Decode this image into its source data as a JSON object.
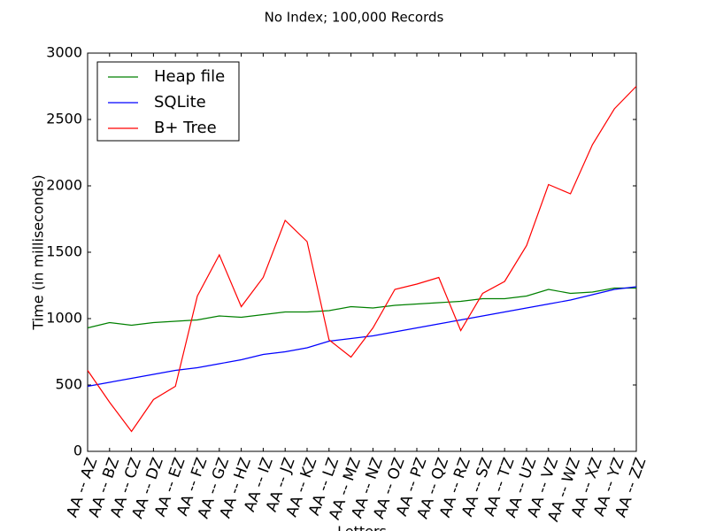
{
  "chart_data": {
    "type": "line",
    "title": "No Index; 100,000 Records",
    "x_label": "Letters",
    "y_label": "Time (in milliseconds)",
    "categories": [
      "AA -- AZ",
      "AA -- BZ",
      "AA -- CZ",
      "AA -- DZ",
      "AA -- EZ",
      "AA -- FZ",
      "AA -- GZ",
      "AA -- HZ",
      "AA -- IZ",
      "AA -- JZ",
      "AA -- KZ",
      "AA -- LZ",
      "AA -- MZ",
      "AA -- NZ",
      "AA -- OZ",
      "AA -- PZ",
      "AA -- QZ",
      "AA -- RZ",
      "AA -- SZ",
      "AA -- TZ",
      "AA -- UZ",
      "AA -- VZ",
      "AA -- WZ",
      "AA -- XZ",
      "AA -- YZ",
      "AA -- ZZ"
    ],
    "series": [
      {
        "name": "Heap file",
        "color": "#008000",
        "values": [
          930,
          970,
          950,
          970,
          980,
          990,
          1020,
          1010,
          1030,
          1050,
          1050,
          1060,
          1090,
          1080,
          1100,
          1110,
          1120,
          1130,
          1150,
          1150,
          1170,
          1220,
          1190,
          1200,
          1230,
          1230
        ]
      },
      {
        "name": "SQLite",
        "color": "#0000ff",
        "values": [
          490,
          520,
          550,
          580,
          610,
          630,
          660,
          690,
          730,
          750,
          780,
          830,
          850,
          870,
          900,
          930,
          960,
          990,
          1020,
          1050,
          1080,
          1110,
          1140,
          1180,
          1220,
          1240
        ]
      },
      {
        "name": "B+ Tree",
        "color": "#ff0000",
        "values": [
          610,
          370,
          150,
          390,
          490,
          1170,
          1480,
          1090,
          1310,
          1740,
          1580,
          840,
          710,
          930,
          1220,
          1260,
          1310,
          910,
          1190,
          1280,
          1550,
          2010,
          1940,
          2310,
          2580,
          2750
        ]
      }
    ],
    "ylim": [
      0,
      3000
    ],
    "yticks": [
      0,
      500,
      1000,
      1500,
      2000,
      2500,
      3000
    ],
    "legend": "upper-left",
    "grid": false
  }
}
